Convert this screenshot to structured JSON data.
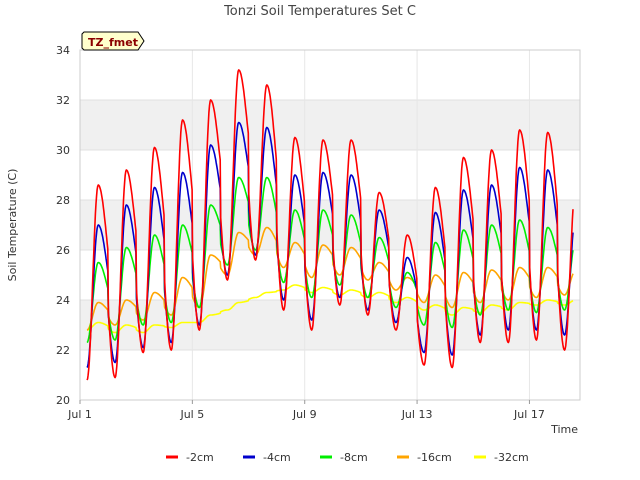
{
  "chart_data": {
    "type": "line",
    "title": "Tonzi Soil Temperatures Set C",
    "xlabel": "Time",
    "ylabel": "Soil Temperature (C)",
    "badge": "TZ_fmet",
    "x_ticks": [
      "Jul 1",
      "Jul 5",
      "Jul 9",
      "Jul 13",
      "Jul 17"
    ],
    "x_tick_days": [
      1,
      5,
      9,
      13,
      17
    ],
    "xlim": [
      1,
      18.8
    ],
    "ylim": [
      20,
      34
    ],
    "y_ticks": [
      20,
      22,
      24,
      26,
      28,
      30,
      32,
      34
    ],
    "grid": true,
    "legend_position": "bottom",
    "series": [
      {
        "name": "-2cm",
        "color": "#ff0000",
        "day_lows": [
          20.8,
          20.9,
          21.9,
          22.0,
          22.8,
          24.8,
          25.6,
          23.6,
          22.8,
          23.8,
          23.4,
          22.8,
          21.4,
          21.3,
          22.3,
          22.3,
          22.4,
          22.0,
          23.0
        ],
        "day_highs": [
          28.6,
          29.2,
          30.1,
          31.2,
          32.0,
          33.2,
          32.6,
          30.5,
          30.4,
          30.4,
          28.3,
          26.6,
          28.5,
          29.7,
          30.0,
          30.8,
          30.7,
          28.6,
          28.6
        ]
      },
      {
        "name": "-4cm",
        "color": "#0000cc",
        "day_lows": [
          21.3,
          21.5,
          22.1,
          22.3,
          23.0,
          25.0,
          25.8,
          24.0,
          23.2,
          24.1,
          23.6,
          23.1,
          21.9,
          21.8,
          22.6,
          22.8,
          22.8,
          22.6,
          23.5
        ],
        "day_highs": [
          27.0,
          27.8,
          28.5,
          29.1,
          30.2,
          31.1,
          30.9,
          29.0,
          29.1,
          29.0,
          27.6,
          25.7,
          27.5,
          28.4,
          28.6,
          29.3,
          29.2,
          27.4,
          26.7
        ]
      },
      {
        "name": "-8cm",
        "color": "#00ee00",
        "day_lows": [
          22.3,
          22.4,
          23.0,
          23.1,
          23.7,
          25.4,
          26.0,
          24.7,
          24.1,
          24.6,
          24.1,
          23.7,
          23.0,
          22.9,
          23.4,
          23.6,
          23.5,
          23.6,
          24.1
        ],
        "day_highs": [
          25.5,
          26.1,
          26.6,
          27.0,
          27.8,
          28.9,
          28.9,
          27.6,
          27.6,
          27.4,
          26.5,
          25.1,
          26.3,
          26.8,
          27.0,
          27.2,
          26.9,
          26.4,
          25.9
        ]
      },
      {
        "name": "-16cm",
        "color": "#ffa500",
        "day_lows": [
          22.8,
          23.0,
          23.2,
          23.4,
          23.7,
          25.0,
          25.8,
          25.3,
          24.9,
          25.0,
          24.8,
          24.4,
          23.9,
          23.7,
          23.9,
          24.0,
          24.1,
          24.2,
          24.4
        ],
        "day_highs": [
          23.9,
          24.0,
          24.3,
          24.9,
          25.8,
          26.7,
          26.9,
          26.3,
          26.2,
          26.1,
          25.5,
          24.9,
          25.0,
          25.1,
          25.2,
          25.3,
          25.3,
          25.2,
          25.1
        ]
      },
      {
        "name": "-32cm",
        "color": "#ffff00",
        "day_lows": [
          22.8,
          22.7,
          22.7,
          22.9,
          23.1,
          23.6,
          24.1,
          24.4,
          24.3,
          24.2,
          24.1,
          23.9,
          23.6,
          23.4,
          23.5,
          23.6,
          23.8,
          23.8,
          23.9
        ],
        "day_highs": [
          23.1,
          23.0,
          23.0,
          23.1,
          23.4,
          23.9,
          24.3,
          24.6,
          24.5,
          24.4,
          24.3,
          24.1,
          23.8,
          23.7,
          23.8,
          23.9,
          24.0,
          24.0,
          24.1
        ]
      }
    ]
  }
}
